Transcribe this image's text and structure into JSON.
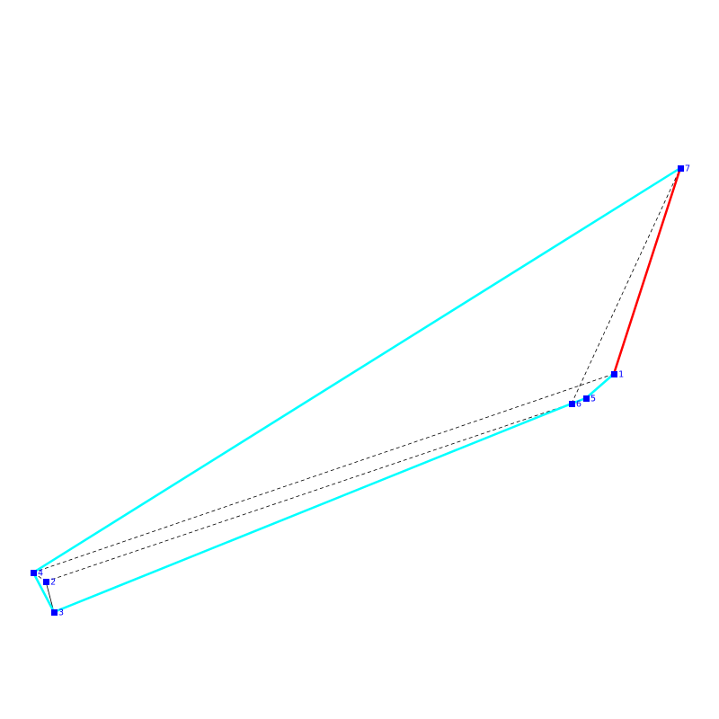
{
  "diagram": {
    "colors": {
      "background": "#ffffff",
      "path": "#00ffff",
      "highlight": "#ff0000",
      "dashed": "#000000",
      "point": "#0000ff",
      "label": "#0000ff"
    },
    "points": [
      {
        "id": "1",
        "label": "1"
      },
      {
        "id": "2",
        "label": "2"
      },
      {
        "id": "3",
        "label": "3"
      },
      {
        "id": "4",
        "label": "4"
      },
      {
        "id": "5",
        "label": "5"
      },
      {
        "id": "6",
        "label": "6"
      },
      {
        "id": "7",
        "label": "7"
      }
    ],
    "cyan_path": [
      "7",
      "4",
      "3",
      "6",
      "5",
      "1"
    ],
    "red_path": [
      "1",
      "7"
    ],
    "dashed_path": [
      "1",
      "4",
      "2",
      "3",
      "2",
      "6",
      "7"
    ]
  }
}
